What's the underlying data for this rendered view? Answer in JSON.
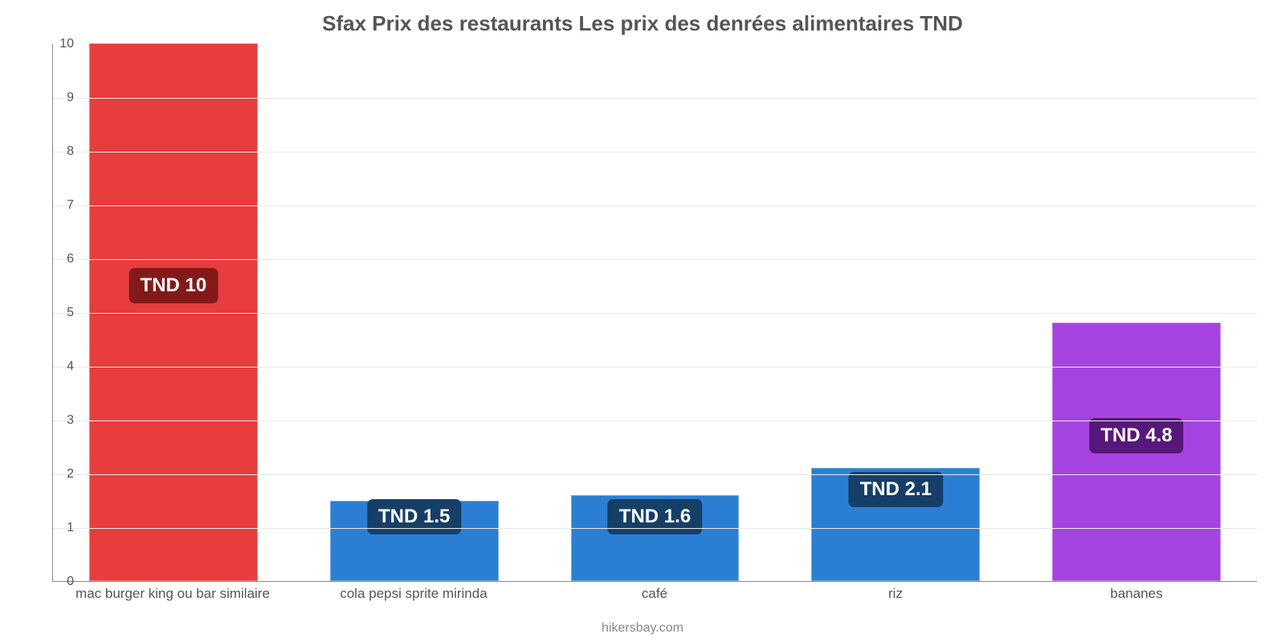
{
  "chart": {
    "type": "bar",
    "title": "Sfax Prix des restaurants Les prix des denrées alimentaires TND",
    "title_fontsize": 26,
    "title_color": "#555555",
    "background_color": "#ffffff",
    "grid_color": "#e9e9e9",
    "axis_color": "#888888",
    "ylim": [
      0,
      10
    ],
    "ytick_step": 1,
    "ytick_fontsize": 16,
    "xlabel_fontsize": 17,
    "label_fontsize": 24,
    "bar_width_pct": 70,
    "source": "hikersbay.com",
    "source_fontsize": 16,
    "categories": [
      "mac burger king ou bar similaire",
      "cola pepsi sprite mirinda",
      "café",
      "riz",
      "bananes"
    ],
    "values": [
      10,
      1.5,
      1.6,
      2.1,
      4.8
    ],
    "value_labels": [
      "TND 10",
      "TND 1.5",
      "TND 1.6",
      "TND 2.1",
      "TND 4.8"
    ],
    "bar_colors": [
      "#e73d3c",
      "#2a7fd4",
      "#2a7fd4",
      "#2a7fd4",
      "#a543e0"
    ],
    "label_bg_colors": [
      "#831a19",
      "#163f67",
      "#163f67",
      "#163f67",
      "#56187a"
    ],
    "label_y_values": [
      5.5,
      1.2,
      1.2,
      1.7,
      2.7
    ]
  }
}
